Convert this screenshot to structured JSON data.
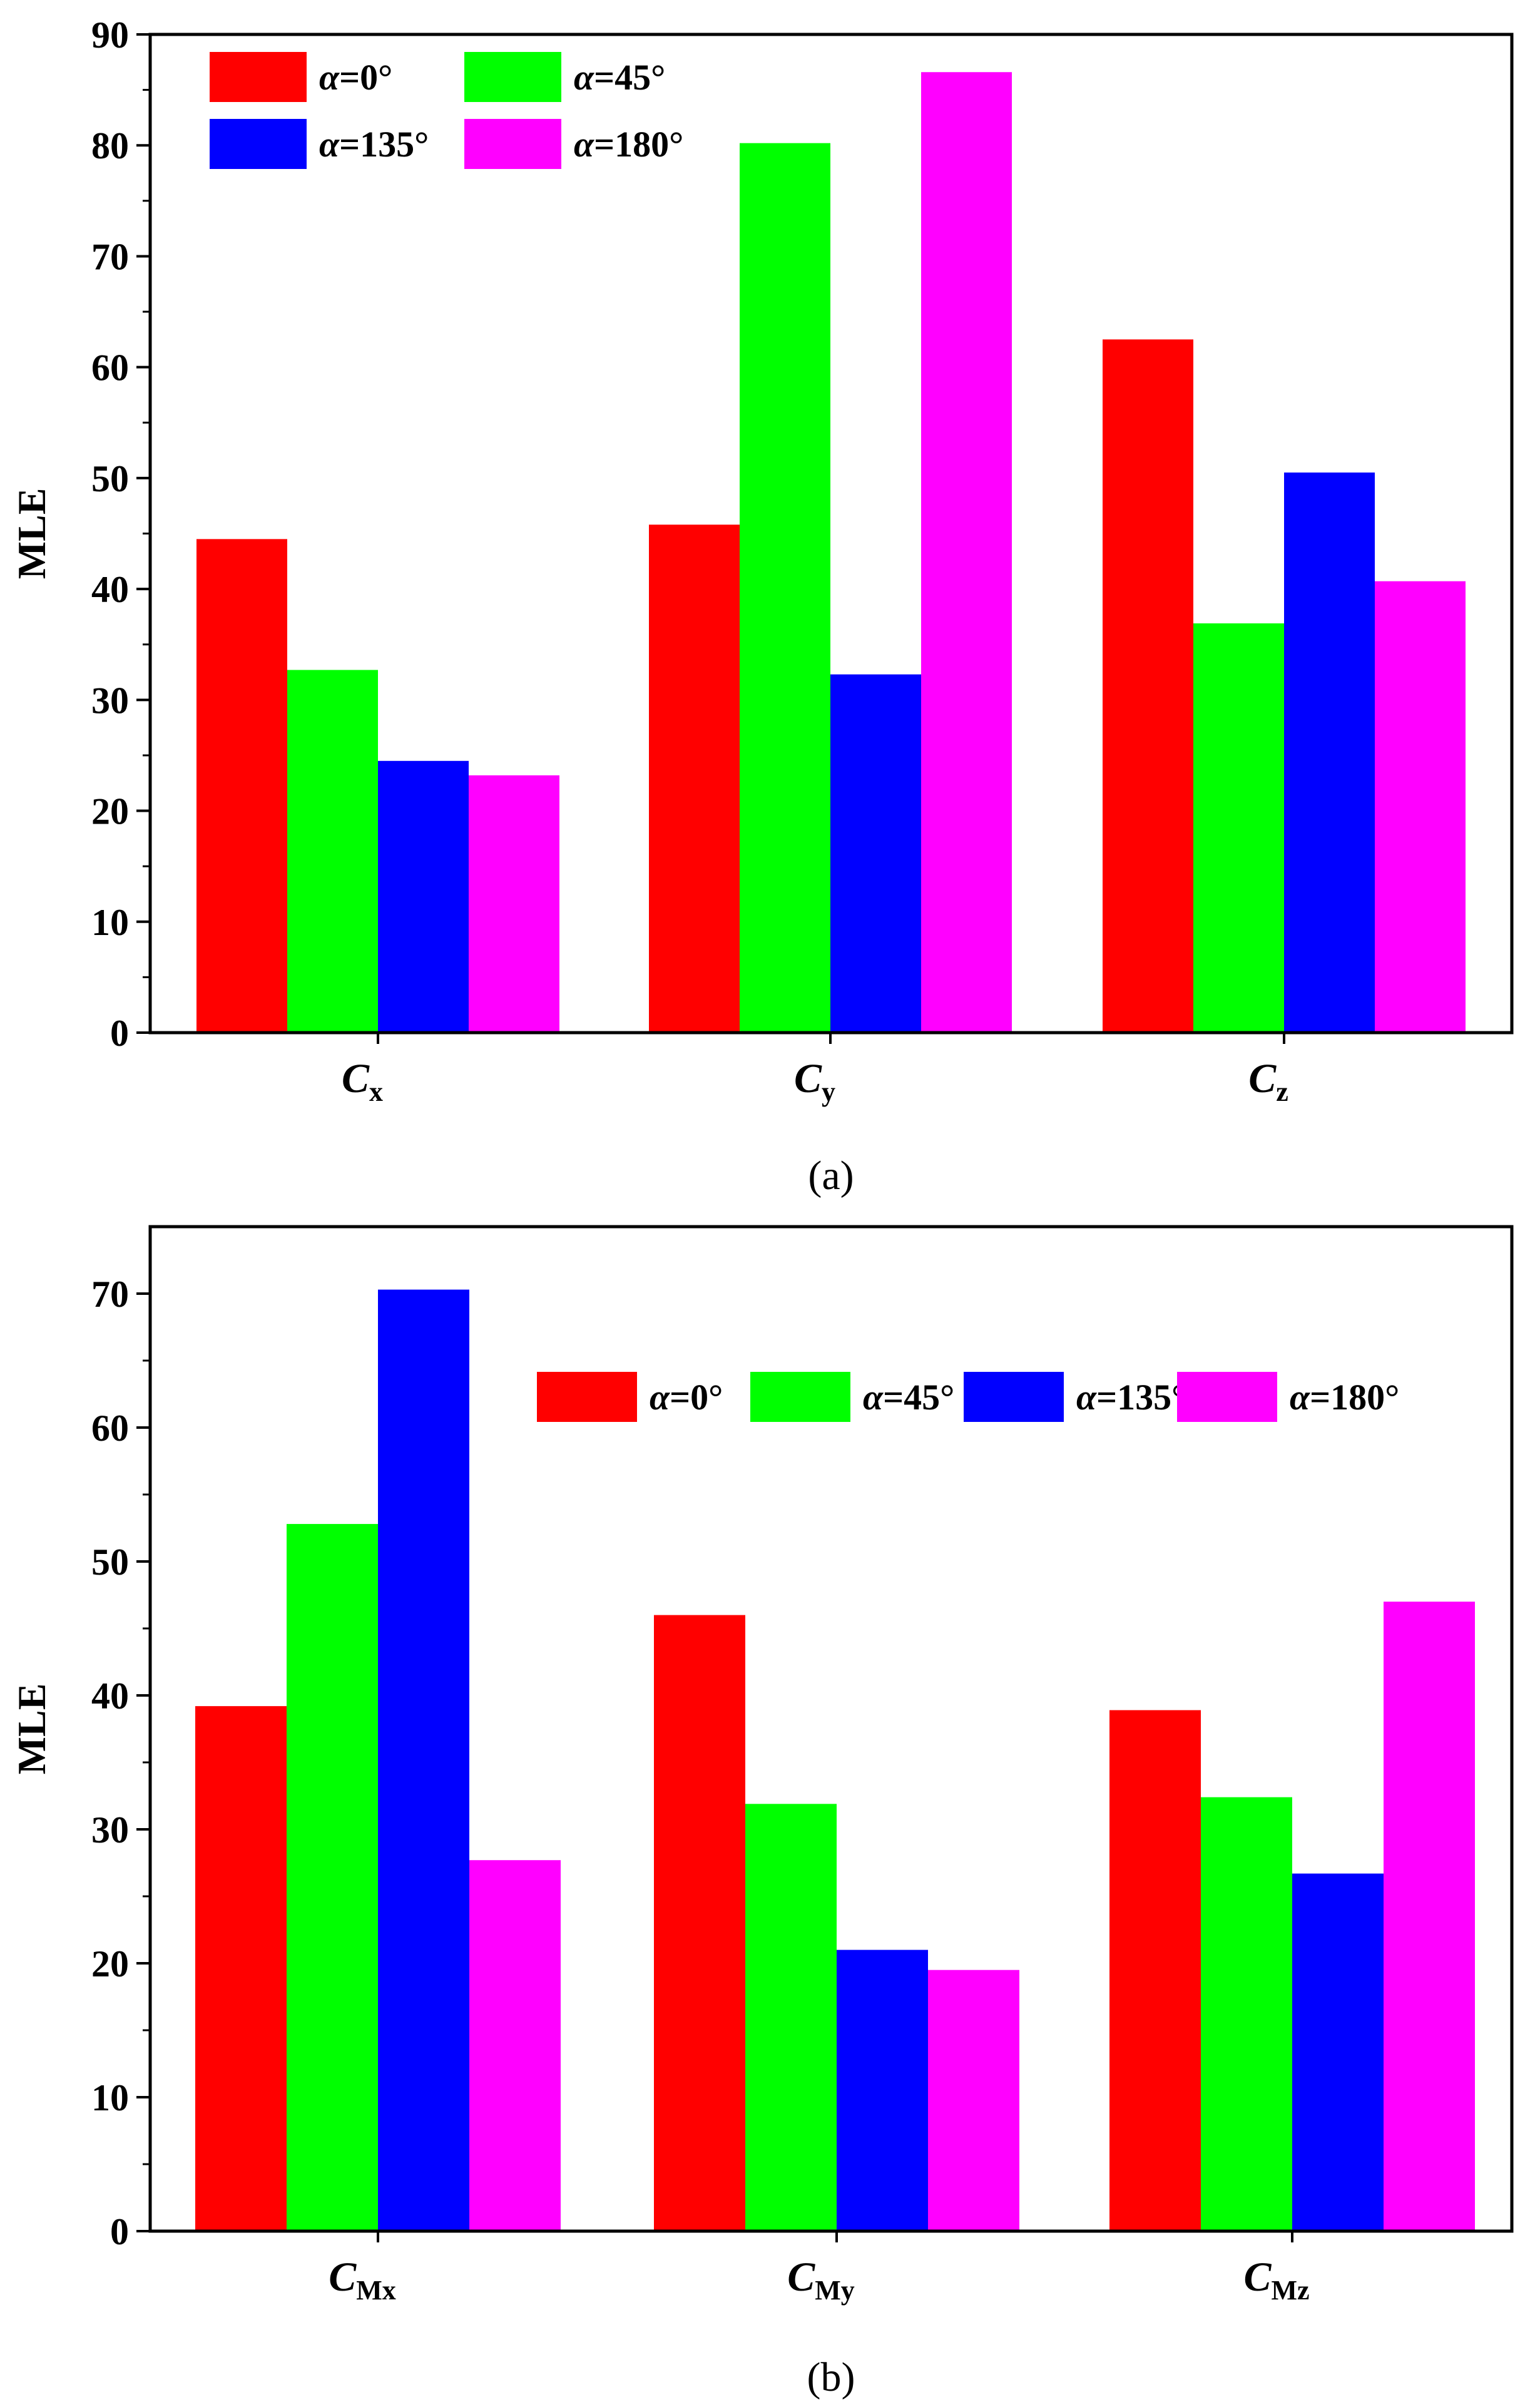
{
  "chart_data": [
    {
      "type": "bar",
      "panel_label": "(a)",
      "categories": [
        {
          "main": "C",
          "sub": "x"
        },
        {
          "main": "C",
          "sub": "y"
        },
        {
          "main": "C",
          "sub": "z"
        }
      ],
      "series": [
        {
          "name": "α=0°",
          "symbol": "α",
          "rest": "=0°",
          "color": "#ff0000",
          "values": [
            44.5,
            45.8,
            62.5
          ]
        },
        {
          "name": "α=45°",
          "symbol": "α",
          "rest": "=45°",
          "color": "#00ff00",
          "values": [
            32.7,
            80.2,
            36.9
          ]
        },
        {
          "name": "α=135°",
          "symbol": "α",
          "rest": "=135°",
          "color": "#0000ff",
          "values": [
            24.5,
            32.3,
            50.5
          ]
        },
        {
          "name": "α=180°",
          "symbol": "α",
          "rest": "=180°",
          "color": "#ff00ff",
          "values": [
            23.2,
            86.6,
            40.7
          ]
        }
      ],
      "ylabel": "MLE",
      "xlabel": "",
      "ylim": [
        0,
        90
      ],
      "yticks": [
        0,
        10,
        20,
        30,
        40,
        50,
        60,
        70,
        80,
        90
      ],
      "legend": {
        "placement": "top-left",
        "columns": 2
      }
    },
    {
      "type": "bar",
      "panel_label": "(b)",
      "categories": [
        {
          "main": "C",
          "sub": "Mx"
        },
        {
          "main": "C",
          "sub": "My"
        },
        {
          "main": "C",
          "sub": "Mz"
        }
      ],
      "series": [
        {
          "name": "α=0°",
          "symbol": "α",
          "rest": "=0°",
          "color": "#ff0000",
          "values": [
            39.2,
            46.0,
            38.9
          ]
        },
        {
          "name": "α=45°",
          "symbol": "α",
          "rest": "=45°",
          "color": "#00ff00",
          "values": [
            52.8,
            31.9,
            32.4
          ]
        },
        {
          "name": "α=135°",
          "symbol": "α",
          "rest": "=135°",
          "color": "#0000ff",
          "values": [
            70.3,
            21.0,
            26.7
          ]
        },
        {
          "name": "α=180°",
          "symbol": "α",
          "rest": "=180°",
          "color": "#ff00ff",
          "values": [
            27.7,
            19.5,
            47.0
          ]
        }
      ],
      "ylabel": "MLE",
      "xlabel": "",
      "ylim": [
        0,
        75
      ],
      "yticks": [
        0,
        10,
        20,
        30,
        40,
        50,
        60,
        70
      ],
      "legend": {
        "placement": "top-right",
        "columns": 4
      }
    }
  ]
}
